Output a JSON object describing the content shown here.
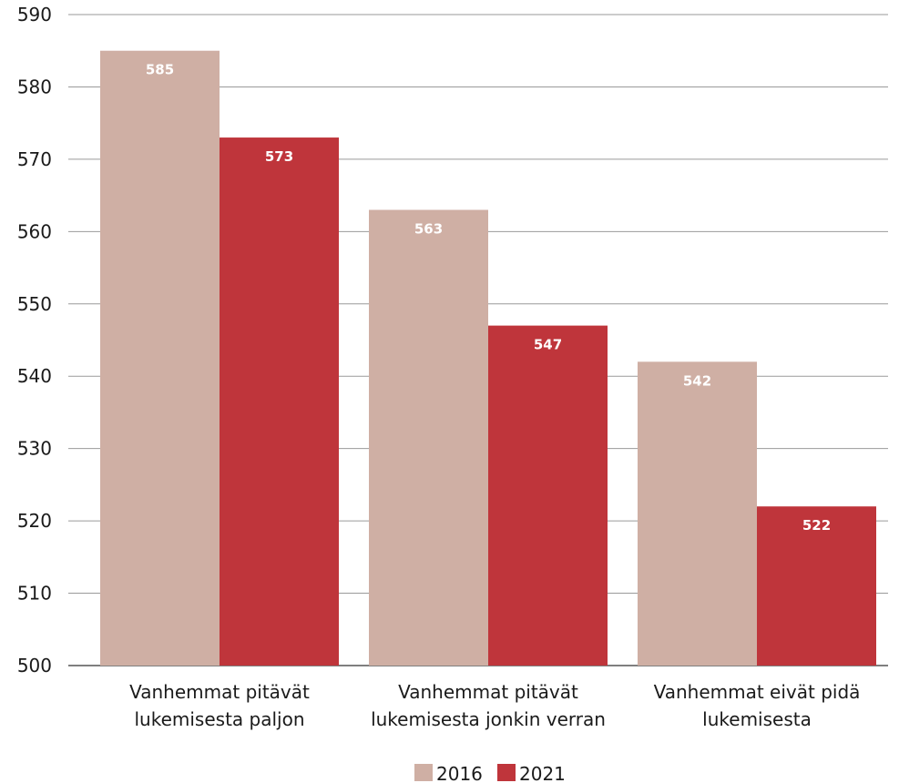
{
  "chart_data": {
    "type": "bar",
    "title": "",
    "xlabel": "",
    "ylabel": "",
    "ylim": [
      500,
      590
    ],
    "ytick_step": 10,
    "grid": true,
    "legend_position": "bottom",
    "categories": [
      [
        "Vanhemmat pitävät",
        "lukemisesta paljon"
      ],
      [
        "Vanhemmat pitävät",
        "lukemisesta jonkin verran"
      ],
      [
        "Vanhemmat eivät pidä",
        "lukemisesta"
      ]
    ],
    "series": [
      {
        "name": "2016",
        "color": "#cfafa4",
        "values": [
          585,
          563,
          542
        ]
      },
      {
        "name": "2021",
        "color": "#bf353b",
        "values": [
          573,
          547,
          522
        ]
      }
    ]
  }
}
